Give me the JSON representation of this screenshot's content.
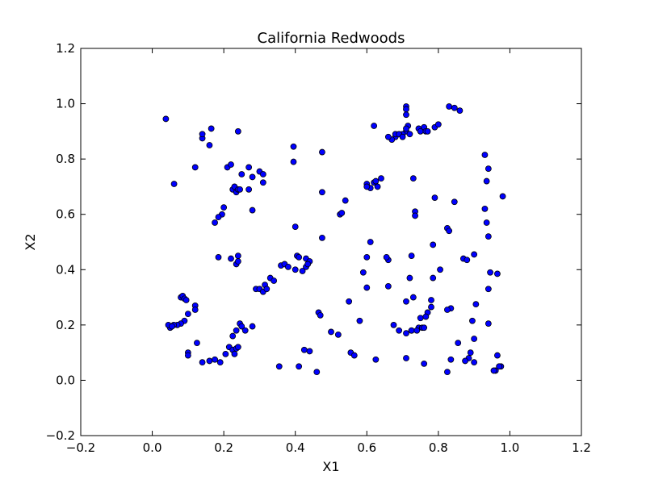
{
  "chart_data": {
    "type": "scatter",
    "title": "California Redwoods",
    "xlabel": "X1",
    "ylabel": "X2",
    "xlim": [
      -0.2,
      1.2
    ],
    "ylim": [
      -0.2,
      1.2
    ],
    "xticks": [
      "−0.2",
      "0.0",
      "0.2",
      "0.4",
      "0.6",
      "0.8",
      "1.0",
      "1.2"
    ],
    "yticks": [
      "−0.2",
      "0.0",
      "0.2",
      "0.4",
      "0.6",
      "0.8",
      "1.0",
      "1.2"
    ],
    "grid": false,
    "marker_color": "#0000ff",
    "series": [
      {
        "x": [
          0.038,
          0.061,
          0.14,
          0.14,
          0.16,
          0.165,
          0.12,
          0.24,
          0.21,
          0.22,
          0.225,
          0.23,
          0.235,
          0.24,
          0.25,
          0.27,
          0.28,
          0.27,
          0.3,
          0.31,
          0.31,
          0.28,
          0.245,
          0.2,
          0.195,
          0.185,
          0.175,
          0.185,
          0.22,
          0.24,
          0.235,
          0.24,
          0.08,
          0.085,
          0.09,
          0.095,
          0.1,
          0.12,
          0.12,
          0.09,
          0.08,
          0.07,
          0.06,
          0.05,
          0.045,
          0.055,
          0.1,
          0.1,
          0.125,
          0.14,
          0.16,
          0.175,
          0.19,
          0.205,
          0.215,
          0.225,
          0.23,
          0.235,
          0.24,
          0.225,
          0.235,
          0.245,
          0.25,
          0.26,
          0.28,
          0.29,
          0.3,
          0.31,
          0.315,
          0.32,
          0.33,
          0.34,
          0.36,
          0.37,
          0.38,
          0.4,
          0.42,
          0.405,
          0.41,
          0.43,
          0.44,
          0.43,
          0.435,
          0.395,
          0.395,
          0.4,
          0.475,
          0.475,
          0.475,
          0.465,
          0.47,
          0.525,
          0.53,
          0.54,
          0.6,
          0.61,
          0.6,
          0.62,
          0.63,
          0.625,
          0.64,
          0.62,
          0.61,
          0.6,
          0.59,
          0.6,
          0.55,
          0.58,
          0.66,
          0.66,
          0.655,
          0.71,
          0.71,
          0.71,
          0.715,
          0.71,
          0.72,
          0.7,
          0.68,
          0.67,
          0.66,
          0.68,
          0.69,
          0.7,
          0.71,
          0.745,
          0.75,
          0.76,
          0.765,
          0.77,
          0.79,
          0.8,
          0.83,
          0.845,
          0.86,
          0.73,
          0.735,
          0.735,
          0.725,
          0.72,
          0.71,
          0.73,
          0.745,
          0.75,
          0.725,
          0.76,
          0.77,
          0.78,
          0.78,
          0.785,
          0.79,
          0.805,
          0.825,
          0.83,
          0.845,
          0.785,
          0.87,
          0.88,
          0.9,
          0.93,
          0.94,
          0.935,
          0.935,
          0.94,
          0.93,
          0.94,
          0.98,
          0.965,
          0.945,
          0.905,
          0.895,
          0.9,
          0.965,
          0.975,
          0.97,
          0.96,
          0.9,
          0.89,
          0.885,
          0.875,
          0.825,
          0.835,
          0.855,
          0.725,
          0.74,
          0.755,
          0.76,
          0.675,
          0.69,
          0.71,
          0.765,
          0.835,
          0.825,
          0.94,
          0.955,
          0.5,
          0.52,
          0.355,
          0.41,
          0.425,
          0.44,
          0.46,
          0.555,
          0.565,
          0.625,
          0.71
        ],
        "y": [
          0.945,
          0.71,
          0.875,
          0.89,
          0.85,
          0.91,
          0.77,
          0.9,
          0.77,
          0.78,
          0.69,
          0.7,
          0.68,
          0.69,
          0.745,
          0.77,
          0.735,
          0.69,
          0.755,
          0.745,
          0.715,
          0.615,
          0.69,
          0.625,
          0.6,
          0.59,
          0.57,
          0.445,
          0.44,
          0.45,
          0.42,
          0.43,
          0.3,
          0.305,
          0.295,
          0.29,
          0.24,
          0.27,
          0.255,
          0.215,
          0.205,
          0.2,
          0.2,
          0.19,
          0.2,
          0.195,
          0.1,
          0.09,
          0.135,
          0.065,
          0.07,
          0.075,
          0.065,
          0.095,
          0.12,
          0.11,
          0.095,
          0.115,
          0.12,
          0.16,
          0.18,
          0.205,
          0.195,
          0.18,
          0.195,
          0.33,
          0.33,
          0.32,
          0.345,
          0.33,
          0.37,
          0.36,
          0.415,
          0.42,
          0.41,
          0.4,
          0.395,
          0.45,
          0.445,
          0.44,
          0.43,
          0.41,
          0.42,
          0.845,
          0.79,
          0.555,
          0.825,
          0.68,
          0.515,
          0.245,
          0.235,
          0.6,
          0.605,
          0.65,
          0.71,
          0.695,
          0.7,
          0.715,
          0.7,
          0.72,
          0.73,
          0.92,
          0.5,
          0.445,
          0.39,
          0.335,
          0.285,
          0.215,
          0.34,
          0.435,
          0.445,
          0.99,
          0.98,
          0.96,
          0.92,
          0.9,
          0.89,
          0.89,
          0.88,
          0.87,
          0.88,
          0.89,
          0.89,
          0.88,
          0.91,
          0.91,
          0.9,
          0.915,
          0.9,
          0.9,
          0.915,
          0.925,
          0.99,
          0.985,
          0.975,
          0.73,
          0.61,
          0.595,
          0.45,
          0.37,
          0.285,
          0.3,
          0.19,
          0.225,
          0.18,
          0.06,
          0.245,
          0.265,
          0.29,
          0.37,
          0.66,
          0.4,
          0.55,
          0.54,
          0.645,
          0.49,
          0.44,
          0.435,
          0.455,
          0.815,
          0.765,
          0.72,
          0.57,
          0.52,
          0.62,
          0.33,
          0.665,
          0.385,
          0.39,
          0.275,
          0.215,
          0.065,
          0.09,
          0.05,
          0.05,
          0.035,
          0.15,
          0.1,
          0.08,
          0.07,
          0.03,
          0.075,
          0.135,
          0.18,
          0.18,
          0.19,
          0.19,
          0.2,
          0.18,
          0.17,
          0.23,
          0.26,
          0.255,
          0.205,
          0.035,
          0.175,
          0.165,
          0.05,
          0.05,
          0.11,
          0.105,
          0.03,
          0.1,
          0.09,
          0.075,
          0.08
        ],
        "marker": "circle"
      }
    ]
  }
}
